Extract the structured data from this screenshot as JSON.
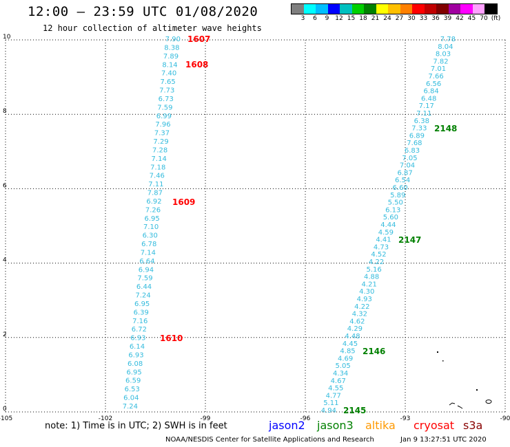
{
  "header": {
    "title": "12:00 — 23:59 UTC 01/08/2020",
    "subtitle": "12 hour collection of altimeter wave heights"
  },
  "legend": {
    "colors": [
      "#7f7f7f",
      "#00ffff",
      "#00bfff",
      "#0000ff",
      "#00c0c0",
      "#00d000",
      "#008000",
      "#ffff00",
      "#ffc000",
      "#ff8000",
      "#ff0000",
      "#c00000",
      "#800000",
      "#a000a0",
      "#ff00ff",
      "#ffa0ff",
      "#000000"
    ],
    "ticks": [
      "3",
      "6",
      "9",
      "12",
      "15",
      "18",
      "21",
      "24",
      "27",
      "30",
      "33",
      "36",
      "39",
      "42",
      "45",
      "70",
      "(ft)"
    ]
  },
  "map_data": {
    "x_ticks": [
      "-105",
      "-102",
      "-99",
      "-96",
      "-93",
      "-90"
    ],
    "y_ticks": [
      "0",
      "2",
      "4",
      "6",
      "8",
      "10"
    ],
    "track_left": {
      "color": "#33bbdd",
      "values": [
        "7.90",
        "8.38",
        "7.89",
        "8.14",
        "7.40",
        "7.65",
        "7.73",
        "6.73",
        "7.59",
        "6.99",
        "7.96",
        "7.37",
        "7.29",
        "7.28",
        "7.14",
        "7.18",
        "7.46",
        "7.11",
        "7.87",
        "6.92",
        "7.26",
        "6.95",
        "7.10",
        "6.30",
        "6.78",
        "7.14",
        "6.64",
        "6.94",
        "7.59",
        "6.44",
        "7.24",
        "6.95",
        "6.39",
        "7.16",
        "6.72",
        "6.93",
        "6.14",
        "6.93",
        "6.08",
        "6.95",
        "6.59",
        "6.53",
        "6.04",
        "7.24"
      ]
    },
    "track_right": {
      "color": "#33bbdd",
      "values": [
        "7.78",
        "8.04",
        "8.03",
        "7.82",
        "7.01",
        "7.66",
        "6.56",
        "6.84",
        "6.48",
        "7.17",
        "7.11",
        "6.38",
        "7.33",
        "6.89",
        "7.68",
        "6.83",
        "7.05",
        "7.04",
        "6.87",
        "6.54",
        "6.60",
        "5.89",
        "5.50",
        "6.13",
        "5.60",
        "4.44",
        "4.59",
        "4.41",
        "4.73",
        "4.52",
        "4.22",
        "5.16",
        "4.88",
        "4.21",
        "4.30",
        "4.93",
        "4.22",
        "4.32",
        "4.62",
        "4.29",
        "4.48",
        "4.45",
        "4.85",
        "4.69",
        "5.05",
        "4.34",
        "4.67",
        "4.55",
        "4.77",
        "5.11",
        "4.94"
      ]
    },
    "time_labels_left": {
      "color": "#ff0000",
      "labels": [
        "1607",
        "1608",
        "1609",
        "1610"
      ]
    },
    "time_labels_right": {
      "color": "#008000",
      "labels": [
        "2148",
        "2147",
        "2146",
        "2145"
      ]
    }
  },
  "footer": {
    "note": "note: 1) Time is in UTC; 2) SWH is in feet",
    "satellites": [
      {
        "name": "jason2",
        "color": "#0000ff"
      },
      {
        "name": "jason3",
        "color": "#008000"
      },
      {
        "name": "altika",
        "color": "#ff9900"
      },
      {
        "name": "cryosat",
        "color": "#ff0000"
      },
      {
        "name": "s3a",
        "color": "#880000"
      }
    ],
    "credit": "NOAA/NESDIS Center for Satellite Applications and Research",
    "timestamp": "Jan  9 13:27:51 UTC 2020"
  }
}
